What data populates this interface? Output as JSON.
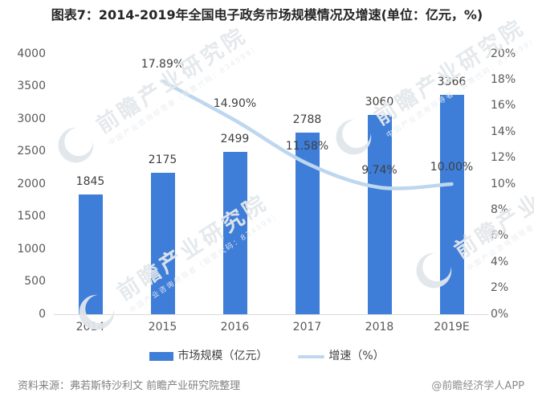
{
  "title": "图表7：2014-2019年全国电子政务市场规模情况及增速(单位：亿元，%)",
  "chart_data": {
    "type": "bar",
    "subtype": "bar+line combo",
    "categories": [
      "2014",
      "2015",
      "2016",
      "2017",
      "2018",
      "2019E"
    ],
    "series": [
      {
        "name": "市场规模（亿元）",
        "type": "bar",
        "values": [
          1845,
          2175,
          2499,
          2788,
          3060,
          3366
        ],
        "labels": [
          "1845",
          "2175",
          "2499",
          "2788",
          "3060",
          "3366"
        ],
        "color": "#3E7DD8",
        "axis": "left"
      },
      {
        "name": "增速（%）",
        "type": "line",
        "values": [
          null,
          17.89,
          14.9,
          11.58,
          9.74,
          10.0
        ],
        "labels": [
          null,
          "17.89%",
          "14.90%",
          "11.58%",
          "9.74%",
          "10.00%"
        ],
        "color": "#BDD7EE",
        "axis": "right"
      }
    ],
    "left_axis": {
      "min": 0,
      "max": 4000,
      "step": 500,
      "ticks": [
        "0",
        "500",
        "1000",
        "1500",
        "2000",
        "2500",
        "3000",
        "3500",
        "4000"
      ]
    },
    "right_axis": {
      "min": 0,
      "max": 20,
      "step": 2,
      "ticks": [
        "0%",
        "2%",
        "4%",
        "6%",
        "8%",
        "10%",
        "12%",
        "14%",
        "16%",
        "18%",
        "20%"
      ]
    },
    "grid": false,
    "legend_position": "bottom"
  },
  "footer": {
    "source": "资料来源：弗若斯特沙利文 前瞻产业研究院整理",
    "credit": "@前瞻经济学人APP"
  },
  "watermark": {
    "text": "前瞻产业研究院",
    "subtext": "中国产业咨询领导者（股票代码：834599）"
  },
  "colors": {
    "bar": "#3E7DD8",
    "line": "#BDD7EE",
    "axis_text": "#595959",
    "label_text": "#404040",
    "title_text": "#262626",
    "footer_text": "#808080",
    "axis_line": "#D9D9D9",
    "watermark": "#E4E8EC"
  }
}
